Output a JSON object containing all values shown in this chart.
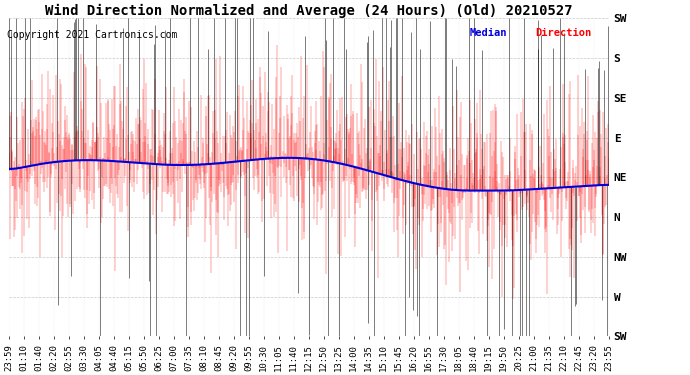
{
  "title": "Wind Direction Normalized and Average (24 Hours) (Old) 20210527",
  "copyright": "Copyright 2021 Cartronics.com",
  "legend_median": "Median",
  "legend_direction": "Direction",
  "ytick_labels_right": [
    "SW",
    "S",
    "SE",
    "E",
    "NE",
    "N",
    "NW",
    "W",
    "SW"
  ],
  "ytick_positions": [
    225,
    180,
    135,
    90,
    45,
    0,
    -45,
    -90,
    -135
  ],
  "background_color": "#ffffff",
  "grid_color": "#bbbbbb",
  "red_color": "#ff0000",
  "black_color": "#000000",
  "blue_color": "#0000dd",
  "title_fontsize": 10,
  "copyright_fontsize": 7,
  "tick_fontsize": 6.5,
  "ylabel_fontsize": 8,
  "xtick_labels": [
    "23:59",
    "01:10",
    "01:40",
    "02:20",
    "02:55",
    "03:30",
    "04:05",
    "04:40",
    "05:15",
    "05:50",
    "06:25",
    "07:00",
    "07:35",
    "08:10",
    "08:45",
    "09:20",
    "09:55",
    "10:30",
    "11:05",
    "11:40",
    "12:15",
    "12:50",
    "13:25",
    "14:00",
    "14:35",
    "15:10",
    "15:45",
    "16:20",
    "16:55",
    "17:30",
    "18:05",
    "18:40",
    "19:15",
    "19:50",
    "20:25",
    "21:00",
    "21:35",
    "22:10",
    "22:45",
    "23:20",
    "23:55"
  ]
}
